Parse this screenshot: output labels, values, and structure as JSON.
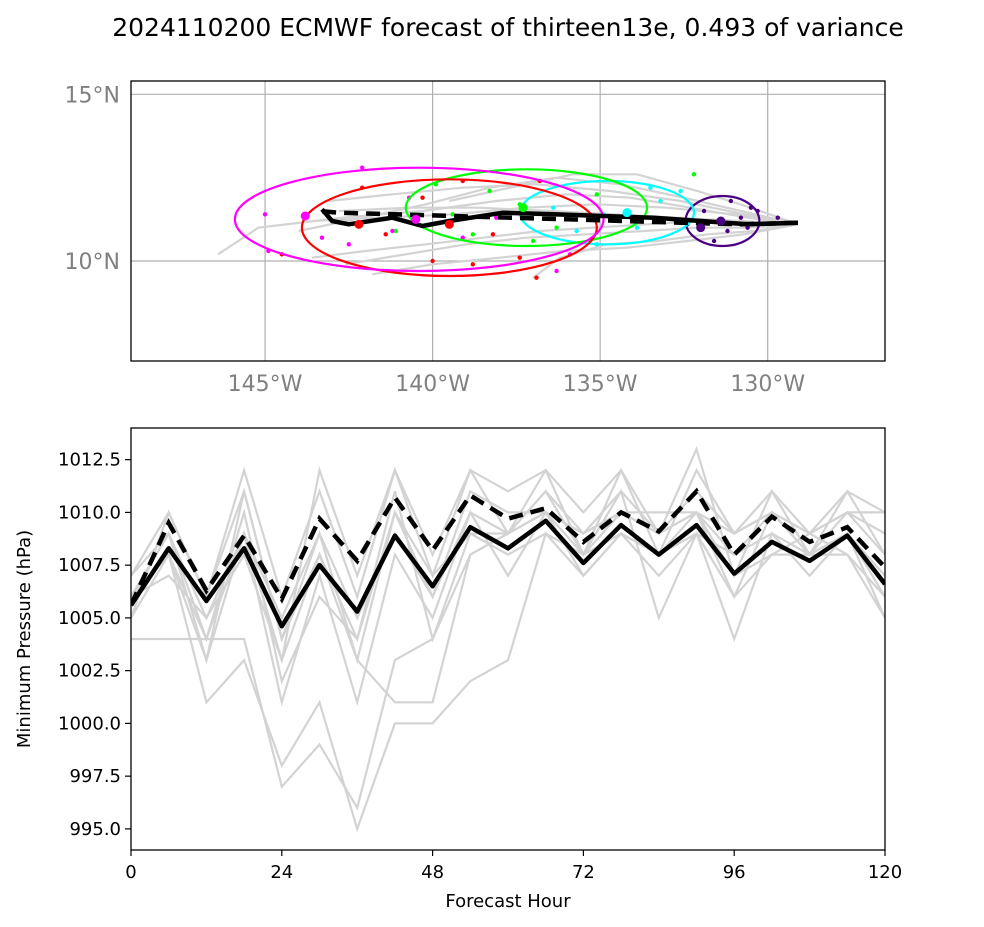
{
  "title": "2024110200 ECMWF forecast of thirteen13e, 0.493 of variance",
  "chart_data": [
    {
      "type": "map-track",
      "lon_range": [
        -149,
        -126.5
      ],
      "lat_range": [
        7,
        15.4
      ],
      "lon_ticks": [
        {
          "value": -145,
          "label": "145°W"
        },
        {
          "value": -140,
          "label": "140°W"
        },
        {
          "value": -135,
          "label": "135°W"
        },
        {
          "value": -130,
          "label": "130°W"
        }
      ],
      "lat_ticks": [
        {
          "value": 15,
          "label": "15°N"
        },
        {
          "value": 10,
          "label": "10°N"
        }
      ],
      "grid": true,
      "ensemble_tracks": [
        [
          [
            -129.1,
            11.1
          ],
          [
            -130.6,
            11.3
          ],
          [
            -132.3,
            11.6
          ],
          [
            -134.1,
            11.9
          ],
          [
            -136.0,
            12.0
          ],
          [
            -138.1,
            11.8
          ],
          [
            -140.3,
            11.5
          ],
          [
            -142.7,
            11.3
          ],
          [
            -145.2,
            11.0
          ],
          [
            -146.4,
            10.2
          ]
        ],
        [
          [
            -129.1,
            11.1
          ],
          [
            -130.5,
            11.1
          ],
          [
            -132.0,
            11.2
          ],
          [
            -133.6,
            11.1
          ],
          [
            -135.2,
            11.0
          ],
          [
            -136.8,
            10.9
          ],
          [
            -138.5,
            10.7
          ],
          [
            -140.2,
            10.5
          ],
          [
            -142.0,
            10.3
          ],
          [
            -143.6,
            10.1
          ]
        ],
        [
          [
            -129.1,
            11.1
          ],
          [
            -130.7,
            11.4
          ],
          [
            -132.6,
            11.8
          ],
          [
            -134.7,
            12.1
          ],
          [
            -136.9,
            12.3
          ],
          [
            -139.1,
            12.2
          ],
          [
            -141.2,
            12.0
          ],
          [
            -143.1,
            11.8
          ]
        ],
        [
          [
            -129.1,
            11.1
          ],
          [
            -130.4,
            10.9
          ],
          [
            -131.8,
            10.8
          ],
          [
            -133.3,
            10.6
          ],
          [
            -134.8,
            10.5
          ],
          [
            -136.2,
            10.1
          ],
          [
            -137.0,
            9.5
          ]
        ],
        [
          [
            -129.1,
            11.1
          ],
          [
            -130.8,
            11.5
          ],
          [
            -132.5,
            11.9
          ],
          [
            -134.4,
            12.3
          ],
          [
            -136.3,
            12.5
          ],
          [
            -138.3,
            12.2
          ],
          [
            -140.2,
            11.7
          ],
          [
            -142.1,
            11.3
          ],
          [
            -144.0,
            10.9
          ]
        ],
        [
          [
            -129.1,
            11.1
          ],
          [
            -130.6,
            11.0
          ],
          [
            -132.1,
            11.0
          ],
          [
            -133.7,
            10.9
          ],
          [
            -135.4,
            10.8
          ],
          [
            -137.2,
            10.7
          ],
          [
            -139.0,
            10.5
          ],
          [
            -140.8,
            10.2
          ],
          [
            -142.6,
            9.9
          ]
        ],
        [
          [
            -129.1,
            11.1
          ],
          [
            -130.9,
            11.2
          ],
          [
            -132.7,
            11.3
          ],
          [
            -134.6,
            11.4
          ],
          [
            -136.5,
            11.5
          ],
          [
            -138.6,
            11.6
          ],
          [
            -140.7,
            11.6
          ],
          [
            -142.8,
            11.5
          ]
        ],
        [
          [
            -129.1,
            11.1
          ],
          [
            -130.5,
            11.6
          ],
          [
            -132.1,
            12.1
          ],
          [
            -133.9,
            12.6
          ],
          [
            -135.8,
            12.6
          ],
          [
            -137.7,
            12.2
          ],
          [
            -139.5,
            11.8
          ]
        ],
        [
          [
            -129.1,
            11.1
          ],
          [
            -130.7,
            10.8
          ],
          [
            -132.4,
            10.6
          ],
          [
            -134.2,
            10.4
          ],
          [
            -136.1,
            10.3
          ],
          [
            -138.0,
            10.1
          ],
          [
            -140.0,
            9.9
          ],
          [
            -141.8,
            9.6
          ]
        ],
        [
          [
            -129.1,
            11.1
          ],
          [
            -131.0,
            11.4
          ],
          [
            -133.0,
            11.6
          ],
          [
            -135.1,
            11.7
          ],
          [
            -137.2,
            11.6
          ],
          [
            -139.4,
            11.4
          ],
          [
            -141.6,
            11.3
          ],
          [
            -143.6,
            11.2
          ]
        ]
      ],
      "ensemble_mean_track": [
        [
          -129.1,
          11.15
        ],
        [
          -130.8,
          11.1
        ],
        [
          -132.6,
          11.15
        ],
        [
          -134.3,
          11.2
        ],
        [
          -136.0,
          11.25
        ],
        [
          -137.7,
          11.3
        ],
        [
          -139.4,
          11.35
        ],
        [
          -141.1,
          11.4
        ],
        [
          -142.8,
          11.45
        ],
        [
          -143.4,
          11.5
        ]
      ],
      "deterministic_track": [
        [
          -129.1,
          11.15
        ],
        [
          -130.6,
          11.1
        ],
        [
          -132.0,
          11.2
        ],
        [
          -133.4,
          11.3
        ],
        [
          -134.9,
          11.35
        ],
        [
          -136.4,
          11.4
        ],
        [
          -137.9,
          11.45
        ],
        [
          -139.5,
          11.2
        ],
        [
          -140.3,
          11.05
        ],
        [
          -141.2,
          11.3
        ],
        [
          -142.5,
          11.1
        ],
        [
          -143.0,
          11.2
        ],
        [
          -143.3,
          11.55
        ]
      ],
      "uncertainty_ellipses": [
        {
          "color": "#4b0082",
          "center": [
            -131.35,
            11.2
          ],
          "rx_deg": 1.1,
          "ry_deg": 0.75,
          "markers": [
            [
              -131.4,
              11.2
            ],
            [
              -132.0,
              11.0
            ]
          ]
        },
        {
          "color": "#00ffff",
          "center": [
            -134.8,
            11.45
          ],
          "rx_deg": 2.6,
          "ry_deg": 0.95,
          "markers": [
            [
              -134.2,
              11.45
            ]
          ]
        },
        {
          "color": "#00ff00",
          "center": [
            -137.2,
            11.6
          ],
          "rx_deg": 3.6,
          "ry_deg": 1.15,
          "markers": [
            [
              -137.3,
              11.6
            ]
          ]
        },
        {
          "color": "#ff0000",
          "center": [
            -139.5,
            11.0
          ],
          "rx_deg": 4.4,
          "ry_deg": 1.45,
          "markers": [
            [
              -139.5,
              11.1
            ],
            [
              -142.2,
              11.1
            ]
          ]
        },
        {
          "color": "#ff00ff",
          "center": [
            -140.4,
            11.25
          ],
          "rx_deg": 5.5,
          "ry_deg": 1.55,
          "markers": [
            [
              -140.5,
              11.25
            ],
            [
              -143.8,
              11.35
            ]
          ]
        }
      ],
      "scatter_points": [
        {
          "color": "#4b0082",
          "points": [
            [
              -130.5,
              11.6
            ],
            [
              -130.8,
              11.3
            ],
            [
              -131.2,
              10.9
            ],
            [
              -131.9,
              11.5
            ],
            [
              -130.3,
              11.5
            ],
            [
              -131.6,
              10.6
            ],
            [
              -132.4,
              11.1
            ],
            [
              -129.7,
              11.3
            ],
            [
              -131.1,
              11.8
            ],
            [
              -130.6,
              11.0
            ]
          ]
        },
        {
          "color": "#00ffff",
          "points": [
            [
              -132.6,
              12.1
            ],
            [
              -133.2,
              11.8
            ],
            [
              -134.9,
              11.4
            ],
            [
              -135.7,
              10.9
            ],
            [
              -133.9,
              11.0
            ],
            [
              -136.4,
              11.6
            ],
            [
              -132.1,
              11.2
            ],
            [
              -135.1,
              10.5
            ],
            [
              -133.5,
              12.2
            ],
            [
              -134.2,
              11.5
            ]
          ]
        },
        {
          "color": "#00ff00",
          "points": [
            [
              -132.2,
              12.6
            ],
            [
              -135.1,
              12.0
            ],
            [
              -137.4,
              11.7
            ],
            [
              -138.3,
              12.1
            ],
            [
              -139.4,
              11.4
            ],
            [
              -140.6,
              11.3
            ],
            [
              -136.3,
              11.0
            ],
            [
              -141.1,
              10.9
            ],
            [
              -137.0,
              10.6
            ],
            [
              -139.9,
              12.3
            ],
            [
              -138.8,
              10.8
            ]
          ]
        },
        {
          "color": "#ff0000",
          "points": [
            [
              -136.9,
              9.5
            ],
            [
              -137.4,
              10.1
            ],
            [
              -138.2,
              10.8
            ],
            [
              -140.0,
              10.0
            ],
            [
              -141.4,
              10.8
            ],
            [
              -142.1,
              12.2
            ],
            [
              -144.5,
              10.2
            ],
            [
              -140.3,
              11.9
            ],
            [
              -136.8,
              12.4
            ],
            [
              -139.1,
              12.4
            ],
            [
              -138.8,
              9.9
            ]
          ]
        },
        {
          "color": "#ff00ff",
          "points": [
            [
              -135.9,
              10.2
            ],
            [
              -136.3,
              9.7
            ],
            [
              -139.1,
              10.7
            ],
            [
              -141.2,
              10.9
            ],
            [
              -142.1,
              12.8
            ],
            [
              -143.3,
              10.7
            ],
            [
              -144.9,
              10.3
            ],
            [
              -145.0,
              11.4
            ],
            [
              -142.5,
              10.5
            ],
            [
              -140.7,
              11.9
            ],
            [
              -138.1,
              11.3
            ]
          ]
        }
      ]
    },
    {
      "type": "line",
      "xlabel": "Forecast Hour",
      "ylabel": "Minimum Pressure (hPa)",
      "xlim": [
        0,
        120
      ],
      "ylim": [
        994,
        1014
      ],
      "xticks": [
        0,
        24,
        48,
        72,
        96,
        120
      ],
      "yticks": [
        {
          "value": 995.0,
          "label": "995.0"
        },
        {
          "value": 997.5,
          "label": "997.5"
        },
        {
          "value": 1000.0,
          "label": "1000.0"
        },
        {
          "value": 1002.5,
          "label": "1002.5"
        },
        {
          "value": 1005.0,
          "label": "1005.0"
        },
        {
          "value": 1007.5,
          "label": "1007.5"
        },
        {
          "value": 1010.0,
          "label": "1010.0"
        },
        {
          "value": 1012.5,
          "label": "1012.5"
        }
      ],
      "x": [
        0,
        6,
        12,
        18,
        24,
        30,
        36,
        42,
        48,
        54,
        60,
        66,
        72,
        78,
        84,
        90,
        96,
        102,
        108,
        114,
        120
      ],
      "ensemble_members": [
        [
          1004,
          1004,
          1004,
          1004,
          997,
          999,
          996,
          1003,
          1004,
          1008,
          1009,
          1010,
          1009,
          1010,
          1009,
          1010,
          1008,
          1009,
          1008,
          1009,
          1005
        ],
        [
          1006,
          1008,
          1001,
          1003,
          998,
          1001,
          995,
          1000,
          1000,
          1002,
          1003,
          1009,
          1008,
          1010,
          1009,
          1010,
          1009,
          1010,
          1009,
          1010,
          1010
        ],
        [
          1005,
          1008,
          1003,
          1011,
          1004,
          1008,
          1003,
          1001,
          1001,
          1008,
          1009,
          1011,
          1009,
          1011,
          1009,
          1011,
          1009,
          1011,
          1009,
          1011,
          1008
        ],
        [
          1007,
          1010,
          1006,
          1012,
          1006,
          1011,
          1006,
          1012,
          1007,
          1012,
          1009,
          1012,
          1010,
          1012,
          1009,
          1013,
          1007,
          1011,
          1008,
          1011,
          1010
        ],
        [
          1006,
          1009,
          1005,
          1009,
          1003,
          1008,
          1004,
          1010,
          1006,
          1011,
          1010,
          1010,
          1009,
          1010,
          1010,
          1010,
          1006,
          1008,
          1009,
          1008,
          1005
        ],
        [
          1007,
          1009,
          1004,
          1010,
          1002,
          1006,
          1004,
          1011,
          1004,
          1009,
          1008,
          1009,
          1007,
          1009,
          1007,
          1009,
          1004,
          1009,
          1007,
          1009,
          1007
        ],
        [
          1006,
          1007,
          1005,
          1008,
          1003,
          1012,
          1007,
          1012,
          1008,
          1012,
          1011,
          1012,
          1008,
          1012,
          1008,
          1012,
          1009,
          1010,
          1009,
          1010,
          1009
        ],
        [
          1005,
          1010,
          1006,
          1011,
          1004,
          1009,
          1005,
          1009,
          1006,
          1010,
          1009,
          1011,
          1008,
          1009,
          1008,
          1010,
          1007,
          1008,
          1008,
          1009,
          1006
        ],
        [
          1006,
          1009,
          1003,
          1009,
          1001,
          1007,
          1001,
          1008,
          1005,
          1010,
          1007,
          1010,
          1008,
          1011,
          1005,
          1009,
          1008,
          1010,
          1008,
          1008,
          1006
        ],
        [
          1006,
          1008,
          1004,
          1009,
          1005,
          1009,
          1003,
          1010,
          1007,
          1009,
          1009,
          1010,
          1007,
          1009,
          1008,
          1009,
          1006,
          1010,
          1008,
          1010,
          1008
        ]
      ],
      "ensemble_mean": [
        1005.6,
        1009.5,
        1006.3,
        1008.9,
        1005.9,
        1009.7,
        1007.7,
        1010.7,
        1008.2,
        1010.8,
        1009.7,
        1010.2,
        1008.6,
        1010.0,
        1009.1,
        1011.0,
        1008.0,
        1009.8,
        1008.6,
        1009.3,
        1007.4
      ],
      "deterministic": [
        1005.6,
        1008.3,
        1005.8,
        1008.3,
        1004.6,
        1007.5,
        1005.3,
        1008.9,
        1006.5,
        1009.3,
        1008.3,
        1009.6,
        1007.6,
        1009.4,
        1008.0,
        1009.4,
        1007.1,
        1008.6,
        1007.7,
        1008.9,
        1006.6
      ]
    }
  ]
}
